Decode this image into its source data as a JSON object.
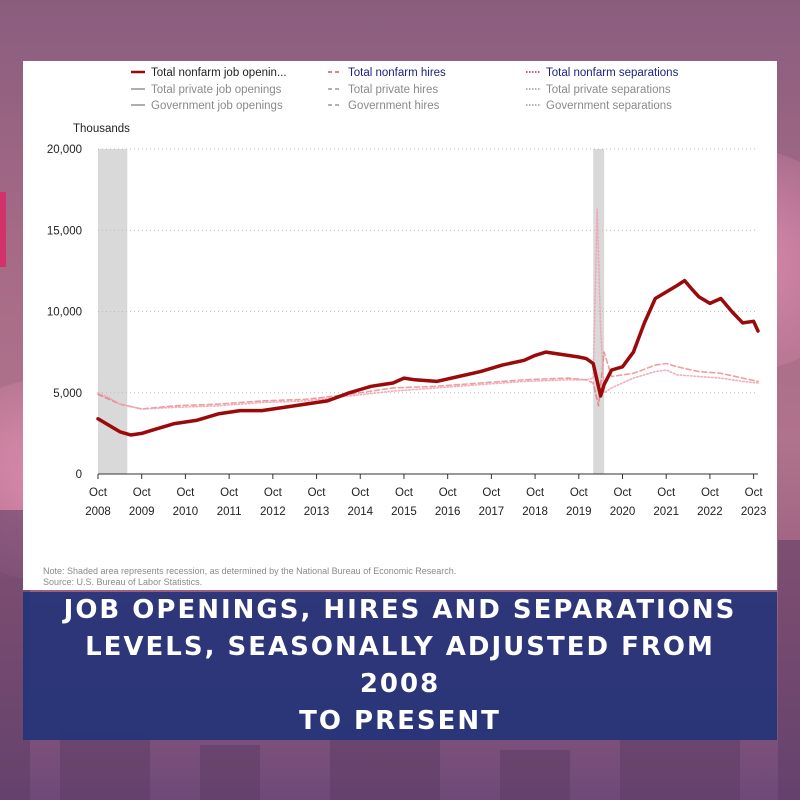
{
  "banner": {
    "title_lines": [
      "JOB OPENINGS, HIRES AND SEPARATIONS",
      "LEVELS, SEASONALLY ADJUSTED FROM 2008",
      "TO PRESENT"
    ]
  },
  "notes": {
    "note": "Note: Shaded area represents recession, as determined by the National Bureau of Economic Research.",
    "source": "Source: U.S. Bureau of Labor Statistics."
  },
  "colors": {
    "openings": "#9b0a0a",
    "hires": "#e05252",
    "separations": "#f0a0b4",
    "legend_muted": "#8a8a8a",
    "legend_blue": "#1a237e",
    "recession": "#d9d9d9",
    "banner": "#253478"
  },
  "chart_data": {
    "type": "line",
    "title": "",
    "ylabel": "Thousands",
    "ylim": [
      0,
      20000
    ],
    "yticks": [
      0,
      5000,
      10000,
      15000,
      20000
    ],
    "ytick_labels": [
      "0",
      "5,000",
      "10,000",
      "15,000",
      "20,000"
    ],
    "xlim": [
      2008.75,
      2023.85
    ],
    "xticks": [
      {
        "month": "Oct",
        "year": "2008",
        "pos": 2008.75
      },
      {
        "month": "Oct",
        "year": "2009",
        "pos": 2009.75
      },
      {
        "month": "Oct",
        "year": "2010",
        "pos": 2010.75
      },
      {
        "month": "Oct",
        "year": "2011",
        "pos": 2011.75
      },
      {
        "month": "Oct",
        "year": "2012",
        "pos": 2012.75
      },
      {
        "month": "Oct",
        "year": "2013",
        "pos": 2013.75
      },
      {
        "month": "Oct",
        "year": "2014",
        "pos": 2014.75
      },
      {
        "month": "Oct",
        "year": "2015",
        "pos": 2015.75
      },
      {
        "month": "Oct",
        "year": "2016",
        "pos": 2016.75
      },
      {
        "month": "Oct",
        "year": "2017",
        "pos": 2017.75
      },
      {
        "month": "Oct",
        "year": "2018",
        "pos": 2018.75
      },
      {
        "month": "Oct",
        "year": "2019",
        "pos": 2019.75
      },
      {
        "month": "Oct",
        "year": "2020",
        "pos": 2020.75
      },
      {
        "month": "Oct",
        "year": "2021",
        "pos": 2021.75
      },
      {
        "month": "Oct",
        "year": "2022",
        "pos": 2022.75
      },
      {
        "month": "Oct",
        "year": "2023",
        "pos": 2023.75
      }
    ],
    "recessions": [
      [
        2008.75,
        2009.42
      ],
      [
        2020.08,
        2020.33
      ]
    ],
    "grid": true,
    "legend": {
      "placement": "top",
      "entries": [
        {
          "label": "Total nonfarm job openin...",
          "style": "solid",
          "color": "#9b0a0a",
          "active": true
        },
        {
          "label": "Total nonfarm hires",
          "style": "dashed",
          "color": "#e05252",
          "active": true
        },
        {
          "label": "Total nonfarm separations",
          "style": "dotted",
          "color": "#c01f4a",
          "active": true
        },
        {
          "label": "Total private job openings",
          "style": "solid",
          "color": "#9a9a9a",
          "active": false
        },
        {
          "label": "Total private hires",
          "style": "dashed",
          "color": "#9a9a9a",
          "active": false
        },
        {
          "label": "Total private separations",
          "style": "dotted",
          "color": "#9a9a9a",
          "active": false
        },
        {
          "label": "Government job openings",
          "style": "solid",
          "color": "#9a9a9a",
          "active": false
        },
        {
          "label": "Government hires",
          "style": "dashed",
          "color": "#9a9a9a",
          "active": false
        },
        {
          "label": "Government separations",
          "style": "dotted",
          "color": "#9a9a9a",
          "active": false
        }
      ]
    },
    "series": [
      {
        "name": "Total nonfarm job openin...",
        "style": "solid",
        "x": [
          2008.75,
          2009.0,
          2009.25,
          2009.5,
          2009.75,
          2010.0,
          2010.5,
          2011.0,
          2011.5,
          2012.0,
          2012.5,
          2013.0,
          2013.5,
          2014.0,
          2014.5,
          2014.75,
          2015.0,
          2015.5,
          2015.75,
          2016.0,
          2016.5,
          2017.0,
          2017.5,
          2018.0,
          2018.5,
          2018.75,
          2019.0,
          2019.5,
          2019.75,
          2019.92,
          2020.08,
          2020.25,
          2020.33,
          2020.5,
          2020.75,
          2021.0,
          2021.25,
          2021.5,
          2021.75,
          2022.0,
          2022.17,
          2022.33,
          2022.5,
          2022.75,
          2023.0,
          2023.25,
          2023.5,
          2023.75,
          2023.85
        ],
        "values": [
          3400,
          3000,
          2600,
          2400,
          2500,
          2700,
          3100,
          3300,
          3700,
          3900,
          3900,
          4100,
          4300,
          4500,
          5000,
          5200,
          5400,
          5600,
          5900,
          5800,
          5700,
          6000,
          6300,
          6700,
          7000,
          7300,
          7500,
          7300,
          7200,
          7100,
          6800,
          4800,
          5500,
          6400,
          6600,
          7500,
          9300,
          10800,
          11200,
          11600,
          11900,
          11400,
          10900,
          10500,
          10800,
          10000,
          9300,
          9400,
          8800
        ]
      },
      {
        "name": "Total nonfarm hires",
        "style": "dashed",
        "x": [
          2008.75,
          2009.25,
          2009.75,
          2010.5,
          2011.5,
          2012.5,
          2013.5,
          2014.5,
          2015.5,
          2016.5,
          2017.5,
          2018.5,
          2019.5,
          2019.92,
          2020.08,
          2020.2,
          2020.33,
          2020.5,
          2021.0,
          2021.5,
          2021.75,
          2022.0,
          2022.5,
          2023.0,
          2023.5,
          2023.85
        ],
        "values": [
          4900,
          4300,
          4000,
          4200,
          4300,
          4500,
          4600,
          4900,
          5300,
          5400,
          5600,
          5800,
          5900,
          5800,
          5600,
          4200,
          7500,
          6000,
          6200,
          6700,
          6800,
          6600,
          6300,
          6200,
          5900,
          5700
        ]
      },
      {
        "name": "Total nonfarm separations",
        "style": "dotted",
        "x": [
          2008.75,
          2009.0,
          2009.25,
          2009.75,
          2010.5,
          2011.5,
          2012.5,
          2013.5,
          2014.5,
          2015.5,
          2016.5,
          2017.5,
          2018.5,
          2019.5,
          2019.92,
          2020.08,
          2020.17,
          2020.25,
          2020.33,
          2020.5,
          2021.0,
          2021.5,
          2021.75,
          2022.0,
          2022.5,
          2023.0,
          2023.5,
          2023.85
        ],
        "values": [
          5000,
          4700,
          4300,
          4000,
          4100,
          4200,
          4400,
          4500,
          4800,
          5100,
          5300,
          5500,
          5700,
          5800,
          5800,
          5900,
          16300,
          9000,
          5000,
          5300,
          5900,
          6300,
          6400,
          6100,
          6000,
          5900,
          5700,
          5600
        ]
      }
    ]
  }
}
